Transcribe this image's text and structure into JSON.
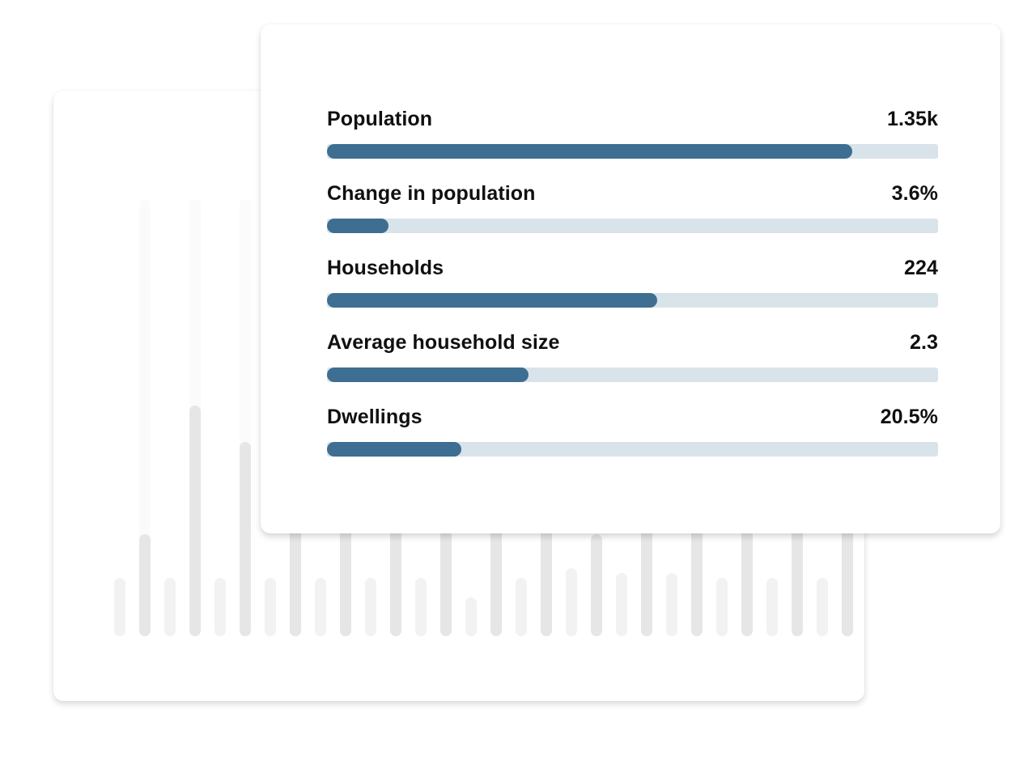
{
  "colors": {
    "accent": "#3e6e91",
    "track": "#d9e3ea",
    "text": "#101010",
    "ghost_bar_dark": "#e6e6e6",
    "ghost_bar_light": "#f2f2f2",
    "ghost_bar_faint": "#fbfbfb"
  },
  "chart_data": [
    {
      "type": "bar",
      "orientation": "horizontal",
      "title": "",
      "categories": [
        "Population",
        "Change in population",
        "Households",
        "Average household size",
        "Dwellings"
      ],
      "value_labels": [
        "1.35k",
        "3.6%",
        "224",
        "2.3",
        "20.5%"
      ],
      "fill_fraction": [
        0.86,
        0.1,
        0.54,
        0.33,
        0.22
      ]
    },
    {
      "type": "bar",
      "title": "",
      "note": "decorative faded background column chart, no labels",
      "values": [
        24,
        42,
        24,
        95,
        24,
        80,
        24,
        66,
        24,
        51,
        24,
        56,
        24,
        44,
        16,
        48,
        24,
        46,
        28,
        42,
        26,
        46,
        26,
        52,
        24,
        49,
        24,
        50,
        24,
        48
      ],
      "ylim": [
        0,
        180
      ]
    }
  ]
}
